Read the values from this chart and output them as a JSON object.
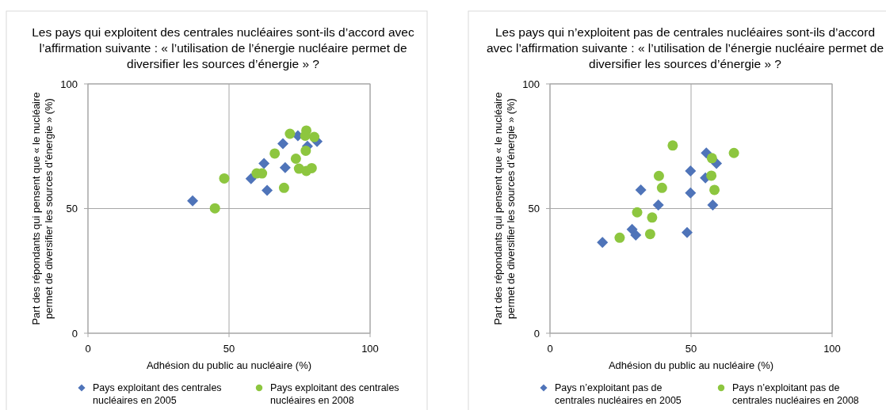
{
  "chart_data": [
    {
      "type": "scatter",
      "title": "Les pays qui exploitent des centrales nucléaires sont-ils d’accord avec l’affirmation suivante : « l’utilisation de l’énergie nucléaire permet de diversifier les sources d’énergie » ?",
      "xlabel": "Adhésion du public au nucléaire (%)",
      "ylabel": "Part des répondants qui pensent que « le nucléaire permet de diversifier les sources d’énergie » (%)",
      "xlim": [
        0,
        100
      ],
      "ylim": [
        0,
        100
      ],
      "xticks": [
        0,
        50,
        100
      ],
      "yticks": [
        0,
        50,
        100
      ],
      "grid": true,
      "legend": "bottom",
      "series": [
        {
          "name": "Pays exploitant des centrales nucléaires en 2005",
          "color": "#4f74b9",
          "marker": "diamond",
          "x": [
            74.4,
            81.2,
            77.8,
            69.1,
            62.4,
            69.9,
            57.8,
            63.5,
            37.1
          ],
          "values": [
            79.2,
            76.9,
            75,
            76,
            68.1,
            66.4,
            62,
            57.3,
            53.1
          ]
        },
        {
          "name": "Pays exploitant des centrales nucléaires en 2008",
          "color": "#8dc63f",
          "marker": "circle",
          "x": [
            71.6,
            77.4,
            77,
            80.2,
            77.2,
            66.2,
            73.7,
            74.8,
            77.4,
            79.3,
            59.8,
            61.7,
            48.3,
            69.5,
            45
          ],
          "values": [
            80,
            81.3,
            79.2,
            78.7,
            73.2,
            72.1,
            70,
            66,
            65.1,
            66.2,
            64.1,
            64.1,
            62.1,
            58.3,
            50.1
          ]
        }
      ]
    },
    {
      "type": "scatter",
      "title": "Les pays qui n’exploitent pas de centrales nucléaires sont-ils d’accord avec l’affirmation suivante : « l’utilisation de l’énergie nucléaire permet de diversifier les sources d’énergie » ?",
      "xlabel": "Adhésion du public au nucléaire (%)",
      "ylabel": "Part des répondants qui pensent que « le nucléaire permet de diversifier les sources d’énergie » (%)",
      "xlim": [
        0,
        100
      ],
      "ylim": [
        0,
        100
      ],
      "xticks": [
        0,
        50,
        100
      ],
      "yticks": [
        0,
        50,
        100
      ],
      "grid": true,
      "legend": "bottom",
      "series": [
        {
          "name": "Pays n’exploitant pas de centrales nucléaires en 2005",
          "color": "#4f74b9",
          "marker": "diamond",
          "x": [
            18.6,
            29.1,
            30.4,
            32.2,
            38.4,
            49.8,
            49.8,
            48.6,
            55.1,
            55.4,
            59,
            57.7
          ],
          "values": [
            36.4,
            41.7,
            39.4,
            57.5,
            51.4,
            65.1,
            56.3,
            40.4,
            62.3,
            72.3,
            68.1,
            51.4
          ]
        },
        {
          "name": "Pays n’exploitant pas de centrales nucléaires en 2008",
          "color": "#8dc63f",
          "marker": "circle",
          "x": [
            24.7,
            30.9,
            35.5,
            36.2,
            38.6,
            39.7,
            43.5,
            57.4,
            57.2,
            58.3,
            65.2
          ],
          "values": [
            38.3,
            48.5,
            39.8,
            46.4,
            63.1,
            58.3,
            75.3,
            70.2,
            63.2,
            57.5,
            72.3
          ]
        }
      ]
    }
  ]
}
